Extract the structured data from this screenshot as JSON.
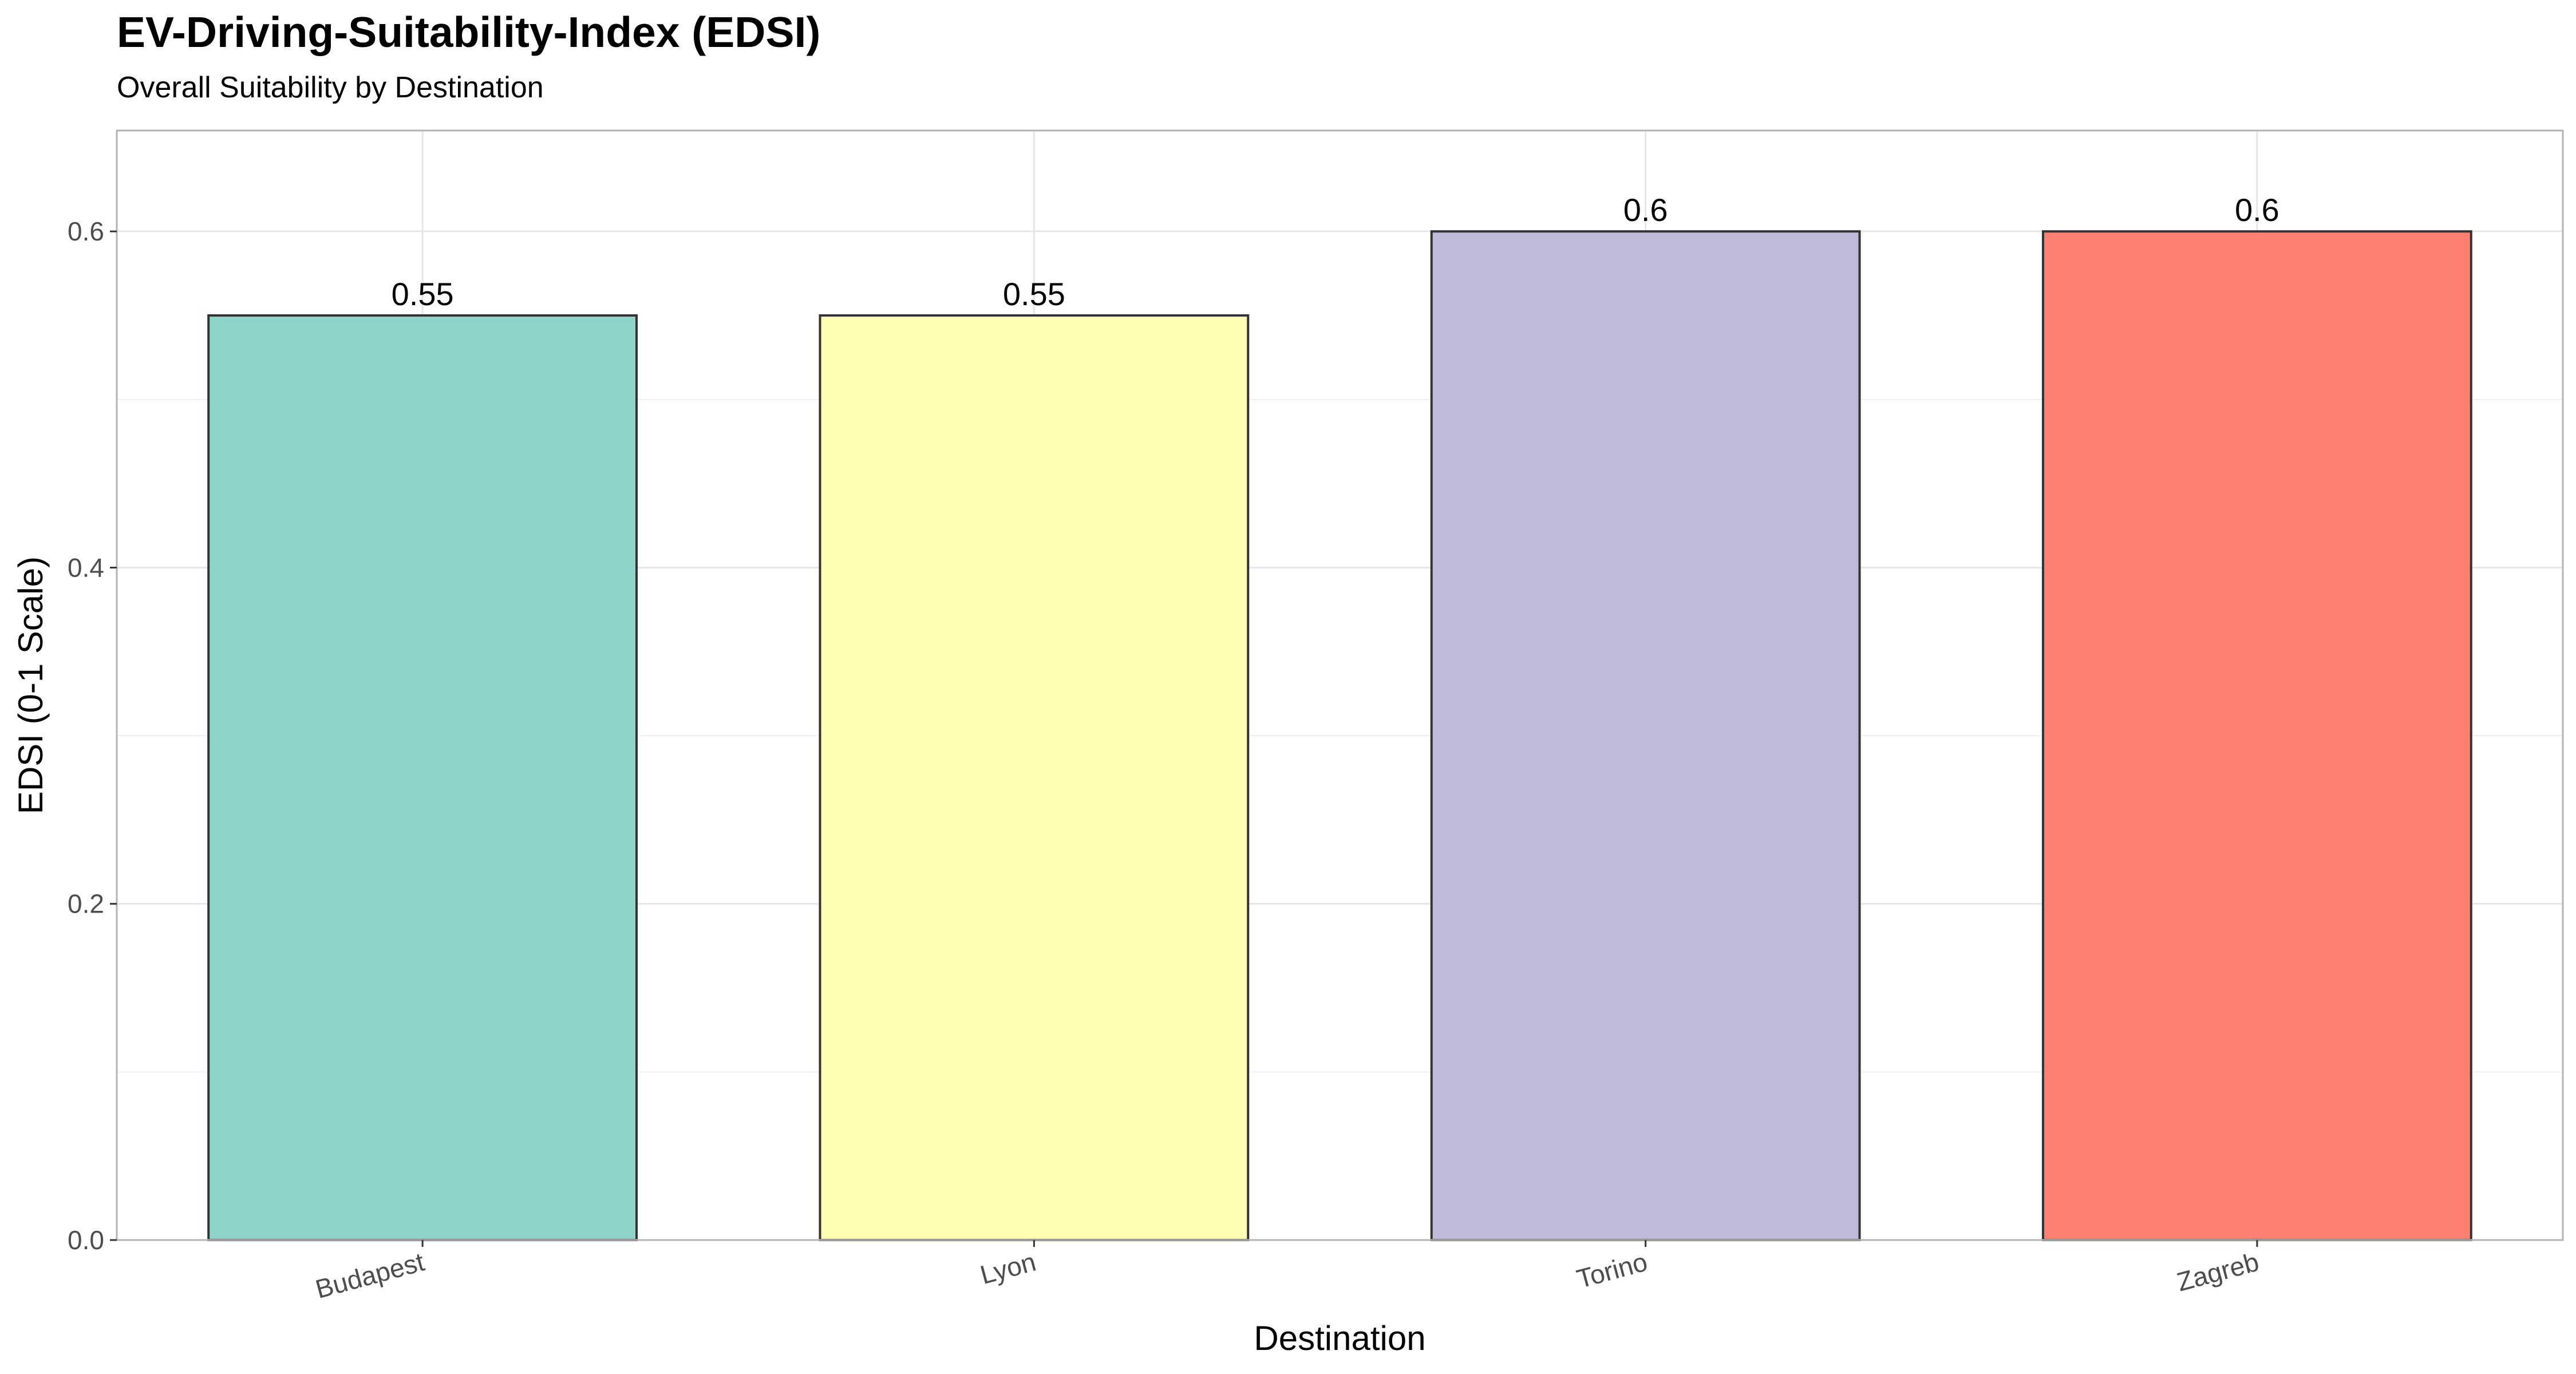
{
  "chart_data": {
    "type": "bar",
    "title": "EV-Driving-Suitability-Index (EDSI)",
    "subtitle": "Overall Suitability by Destination",
    "xlabel": "Destination",
    "ylabel": "EDSI (0-1 Scale)",
    "categories": [
      "Budapest",
      "Lyon",
      "Torino",
      "Zagreb"
    ],
    "values": [
      0.55,
      0.55,
      0.6,
      0.6
    ],
    "value_labels": [
      "0.55",
      "0.55",
      "0.6",
      "0.6"
    ],
    "bar_colors": [
      "#8dd3c7",
      "#ffffb3",
      "#bebada",
      "#fb8072"
    ],
    "bar_outline_color": "#333333",
    "ylim": [
      0,
      0.66
    ],
    "yticks": [
      0.0,
      0.2,
      0.4,
      0.6
    ],
    "ytick_labels": [
      "0.0",
      "0.2",
      "0.4",
      "0.6"
    ],
    "grid": true,
    "legend": "none",
    "panel_border_color": "#b3b3b3",
    "grid_color": "#e6e6e6"
  }
}
